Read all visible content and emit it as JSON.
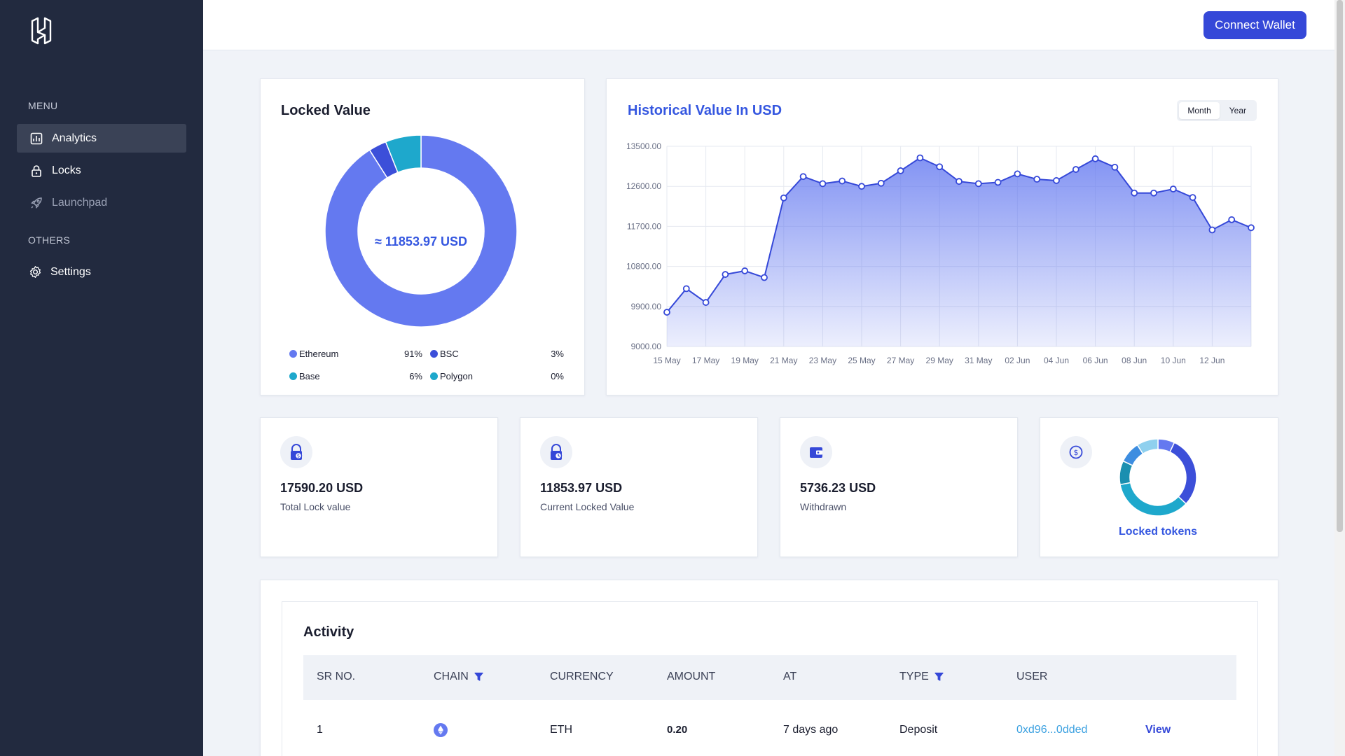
{
  "sidebar": {
    "menu_heading": "MENU",
    "others_heading": "OTHERS",
    "items": [
      {
        "label": "Analytics",
        "icon": "chart-icon"
      },
      {
        "label": "Locks",
        "icon": "lock-icon"
      },
      {
        "label": "Launchpad",
        "icon": "rocket-icon"
      },
      {
        "label": "Settings",
        "icon": "gear-icon"
      }
    ]
  },
  "topbar": {
    "connect_label": "Connect Wallet"
  },
  "locked_value": {
    "title": "Locked Value",
    "center_label": "≈ 11853.97 USD",
    "legend": [
      {
        "name": "Ethereum",
        "pct": "91%",
        "color": "#6479f0"
      },
      {
        "name": "BSC",
        "pct": "3%",
        "color": "#3c4fd9"
      },
      {
        "name": "Base",
        "pct": "6%",
        "color": "#1ea8cc"
      },
      {
        "name": "Polygon",
        "pct": "0%",
        "color": "#1ea8cc"
      }
    ]
  },
  "historical": {
    "title": "Historical Value In USD",
    "toggle": [
      "Month",
      "Year"
    ],
    "active_toggle": "Month"
  },
  "chart_data": [
    {
      "type": "pie",
      "title": "Locked Value",
      "categories": [
        "Ethereum",
        "BSC",
        "Base",
        "Polygon"
      ],
      "values": [
        91,
        3,
        6,
        0
      ]
    },
    {
      "type": "area",
      "title": "Historical Value In USD",
      "xlabel": "",
      "ylabel": "",
      "ylim": [
        9000,
        13500
      ],
      "yticks": [
        "13500.00",
        "12600.00",
        "11700.00",
        "10800.00",
        "9900.00",
        "9000.00"
      ],
      "xticks": [
        "15 May",
        "17 May",
        "19 May",
        "21 May",
        "23 May",
        "25 May",
        "27 May",
        "29 May",
        "31 May",
        "02 Jun",
        "04 Jun",
        "06 Jun",
        "08 Jun",
        "10 Jun",
        "12 Jun"
      ],
      "x": [
        "15 May",
        "16 May",
        "17 May",
        "18 May",
        "19 May",
        "20 May",
        "21 May",
        "22 May",
        "23 May",
        "24 May",
        "25 May",
        "26 May",
        "27 May",
        "28 May",
        "29 May",
        "30 May",
        "31 May",
        "01 Jun",
        "02 Jun",
        "03 Jun",
        "04 Jun",
        "05 Jun",
        "06 Jun",
        "07 Jun",
        "08 Jun",
        "09 Jun",
        "10 Jun",
        "11 Jun",
        "12 Jun",
        "13 Jun",
        "13 Jun+"
      ],
      "values": [
        9770,
        10300,
        9990,
        10620,
        10700,
        10550,
        12340,
        12820,
        12660,
        12720,
        12600,
        12670,
        12950,
        13240,
        13040,
        12710,
        12660,
        12690,
        12880,
        12760,
        12730,
        12980,
        13220,
        13030,
        12450,
        12450,
        12540,
        12350,
        11620,
        11850,
        11670
      ],
      "grid": true
    },
    {
      "type": "pie",
      "title": "Locked tokens",
      "values": [
        7,
        30,
        35,
        10,
        9,
        9
      ]
    }
  ],
  "stats": [
    {
      "value": "17590.20 USD",
      "label": "Total Lock value",
      "icon": "lock-dollar-icon"
    },
    {
      "value": "11853.97 USD",
      "label": "Current Locked Value",
      "icon": "lock-clock-icon"
    },
    {
      "value": "5736.23 USD",
      "label": "Withdrawn",
      "icon": "wallet-icon"
    }
  ],
  "locked_tokens": {
    "label": "Locked tokens",
    "icon": "dollar-circle-icon"
  },
  "activity": {
    "title": "Activity",
    "columns": [
      "SR NO.",
      "CHAIN",
      "CURRENCY",
      "AMOUNT",
      "AT",
      "TYPE",
      "USER"
    ],
    "rows": [
      {
        "sr": "1",
        "chain": "ethereum-icon",
        "currency": "ETH",
        "amount": "0.20",
        "at": "7 days ago",
        "type": "Deposit",
        "user": "0xd96...0dded",
        "action": "View"
      }
    ]
  }
}
